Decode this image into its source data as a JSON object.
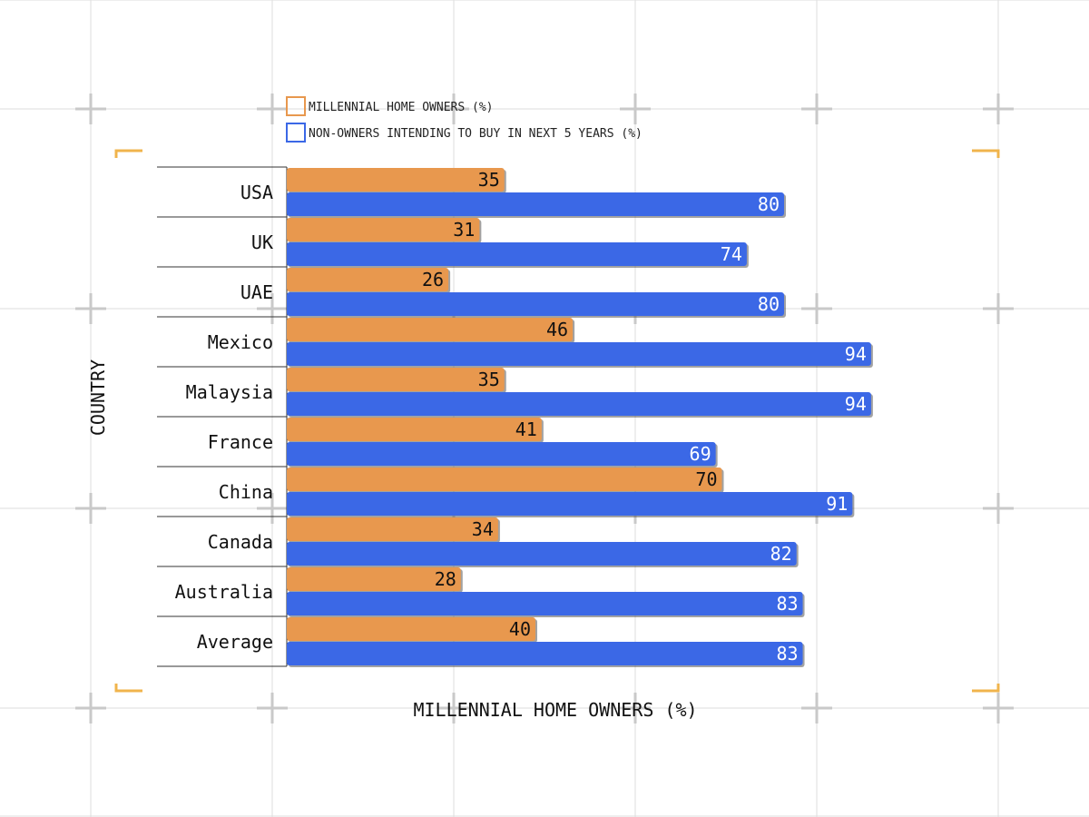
{
  "colors": {
    "series_orange": "#E8984E",
    "series_blue": "#3B68E6",
    "grid": "#dddddd",
    "cross": "#c9c9c9",
    "corner": "#F0B44C"
  },
  "chart_data": {
    "type": "bar",
    "orientation": "horizontal",
    "title": "",
    "xlabel": "MILLENNIAL HOME OWNERS (%)",
    "ylabel": "COUNTRY",
    "xlim": [
      0,
      100
    ],
    "grid": false,
    "legend_position": "top-left",
    "data_labels": true,
    "categories": [
      "USA",
      "UK",
      "UAE",
      "Mexico",
      "Malaysia",
      "France",
      "China",
      "Canada",
      "Australia",
      "Average"
    ],
    "series": [
      {
        "name": "MILLENNIAL HOME OWNERS (%)",
        "color": "#E8984E",
        "values": [
          35,
          31,
          26,
          46,
          35,
          41,
          70,
          34,
          28,
          40
        ]
      },
      {
        "name": "NON-OWNERS INTENDING TO BUY IN NEXT 5 YEARS (%)",
        "color": "#3B68E6",
        "values": [
          80,
          74,
          80,
          94,
          94,
          69,
          91,
          82,
          83,
          83
        ]
      }
    ]
  }
}
